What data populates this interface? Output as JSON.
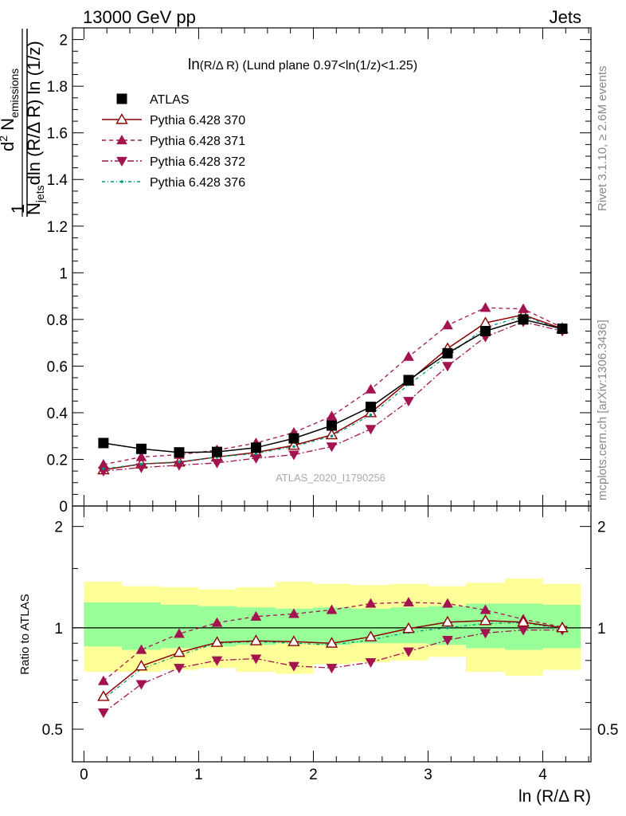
{
  "header": {
    "left": "13000 GeV pp",
    "right": "Jets"
  },
  "side": {
    "rivet": "Rivet 3.1.10, ≥ 2.6M events",
    "mcplots": "mcplots.cern.ch [arXiv:1306.3436]"
  },
  "chart_data": [
    {
      "type": "scatter",
      "title_main": "ln",
      "title_paren": "(R/Δ R)",
      "title_rest": " (Lund plane 0.97<ln(1/z)<1.25)",
      "watermark": "ATLAS_2020_I1790256",
      "ylabel": "1/N_jets d²N_emissions/dln(R/ΔR) ln(1/z)",
      "ylim": [
        0,
        2.05
      ],
      "y_ticks": [
        "0",
        "0.2",
        "0.4",
        "0.6",
        "0.8",
        "1",
        "1.2",
        "1.4",
        "1.6",
        "1.8",
        "2"
      ],
      "grid": false,
      "legend_position": "top-left",
      "x": [
        0.17,
        0.5,
        0.83,
        1.16,
        1.5,
        1.83,
        2.16,
        2.5,
        2.83,
        3.17,
        3.5,
        3.83,
        4.17
      ],
      "series": [
        {
          "name": "ATLAS",
          "color": "#000000",
          "marker": "square",
          "values": [
            0.27,
            0.245,
            0.23,
            0.232,
            0.25,
            0.29,
            0.345,
            0.425,
            0.54,
            0.655,
            0.75,
            0.8,
            0.76
          ]
        },
        {
          "name": "Pythia 6.428 370",
          "color": "#8b0000",
          "marker": "triangle-up-open",
          "dash": "",
          "values": [
            0.155,
            0.18,
            0.188,
            0.21,
            0.23,
            0.26,
            0.305,
            0.4,
            0.535,
            0.675,
            0.785,
            0.82,
            0.76
          ]
        },
        {
          "name": "Pythia 6.428 371",
          "color": "#a3134f",
          "marker": "triangle-up",
          "dash": "5,4",
          "values": [
            0.178,
            0.21,
            0.22,
            0.24,
            0.27,
            0.315,
            0.385,
            0.5,
            0.64,
            0.775,
            0.85,
            0.845,
            0.765
          ]
        },
        {
          "name": "Pythia 6.428 372",
          "color": "#a3134f",
          "marker": "triangle-down",
          "dash": "8,3,2,3",
          "values": [
            0.15,
            0.165,
            0.175,
            0.185,
            0.205,
            0.22,
            0.255,
            0.33,
            0.45,
            0.6,
            0.725,
            0.79,
            0.75
          ]
        },
        {
          "name": "Pythia 6.428 376",
          "color": "#009977",
          "marker": "dot",
          "dash": "4,3,1,3",
          "values": [
            0.16,
            0.18,
            0.19,
            0.21,
            0.225,
            0.255,
            0.3,
            0.39,
            0.52,
            0.645,
            0.765,
            0.815,
            0.755
          ]
        }
      ]
    },
    {
      "type": "scatter",
      "xlabel": "ln (R/Δ R)",
      "ylabel": "Ratio to ATLAS",
      "y_scale": "log",
      "ylim": [
        0.4,
        2.3
      ],
      "y_ticks": [
        "0.5",
        "1",
        "2"
      ],
      "xlim": [
        -0.1,
        4.42
      ],
      "x_ticks": [
        "0",
        "1",
        "2",
        "3",
        "4"
      ],
      "band_colors": {
        "stat": "#99ff99",
        "total": "#ffff99"
      },
      "band_edges": [
        0,
        0.33,
        0.67,
        1.0,
        1.33,
        1.67,
        2.0,
        2.33,
        2.67,
        3.0,
        3.33,
        3.67,
        4.0,
        4.33
      ],
      "band_inner_up": [
        1.19,
        1.19,
        1.17,
        1.16,
        1.15,
        1.14,
        1.15,
        1.14,
        1.15,
        1.16,
        1.18,
        1.18,
        1.17
      ],
      "band_inner_dn": [
        0.88,
        0.86,
        0.87,
        0.88,
        0.89,
        0.9,
        0.89,
        0.9,
        0.9,
        0.89,
        0.87,
        0.86,
        0.87
      ],
      "band_outer_up": [
        1.37,
        1.33,
        1.32,
        1.3,
        1.32,
        1.37,
        1.35,
        1.34,
        1.35,
        1.33,
        1.36,
        1.4,
        1.35
      ],
      "band_outer_dn": [
        0.74,
        0.74,
        0.75,
        0.76,
        0.74,
        0.73,
        0.78,
        0.79,
        0.8,
        0.82,
        0.74,
        0.72,
        0.75
      ],
      "x": [
        0.17,
        0.5,
        0.83,
        1.16,
        1.5,
        1.83,
        2.16,
        2.5,
        2.83,
        3.17,
        3.5,
        3.83,
        4.17
      ],
      "series": [
        {
          "name": "Pythia 6.428 370",
          "color": "#8b0000",
          "marker": "triangle-up-open",
          "dash": "",
          "values": [
            0.625,
            0.77,
            0.845,
            0.905,
            0.915,
            0.91,
            0.9,
            0.94,
            0.995,
            1.04,
            1.05,
            1.04,
            1.0
          ]
        },
        {
          "name": "Pythia 6.428 371",
          "color": "#a3134f",
          "marker": "triangle-up",
          "dash": "5,4",
          "values": [
            0.695,
            0.86,
            0.96,
            1.035,
            1.08,
            1.1,
            1.13,
            1.18,
            1.19,
            1.18,
            1.13,
            1.06,
            1.005
          ]
        },
        {
          "name": "Pythia 6.428 372",
          "color": "#a3134f",
          "marker": "triangle-down",
          "dash": "8,3,2,3",
          "values": [
            0.56,
            0.68,
            0.76,
            0.8,
            0.81,
            0.77,
            0.76,
            0.79,
            0.85,
            0.92,
            0.965,
            0.985,
            0.985
          ]
        },
        {
          "name": "Pythia 6.428 376",
          "color": "#009977",
          "marker": "dot",
          "dash": "4,3,1,3",
          "values": [
            0.615,
            0.755,
            0.83,
            0.9,
            0.91,
            0.9,
            0.89,
            0.92,
            0.97,
            1.0,
            1.03,
            1.035,
            0.995
          ]
        }
      ]
    }
  ]
}
